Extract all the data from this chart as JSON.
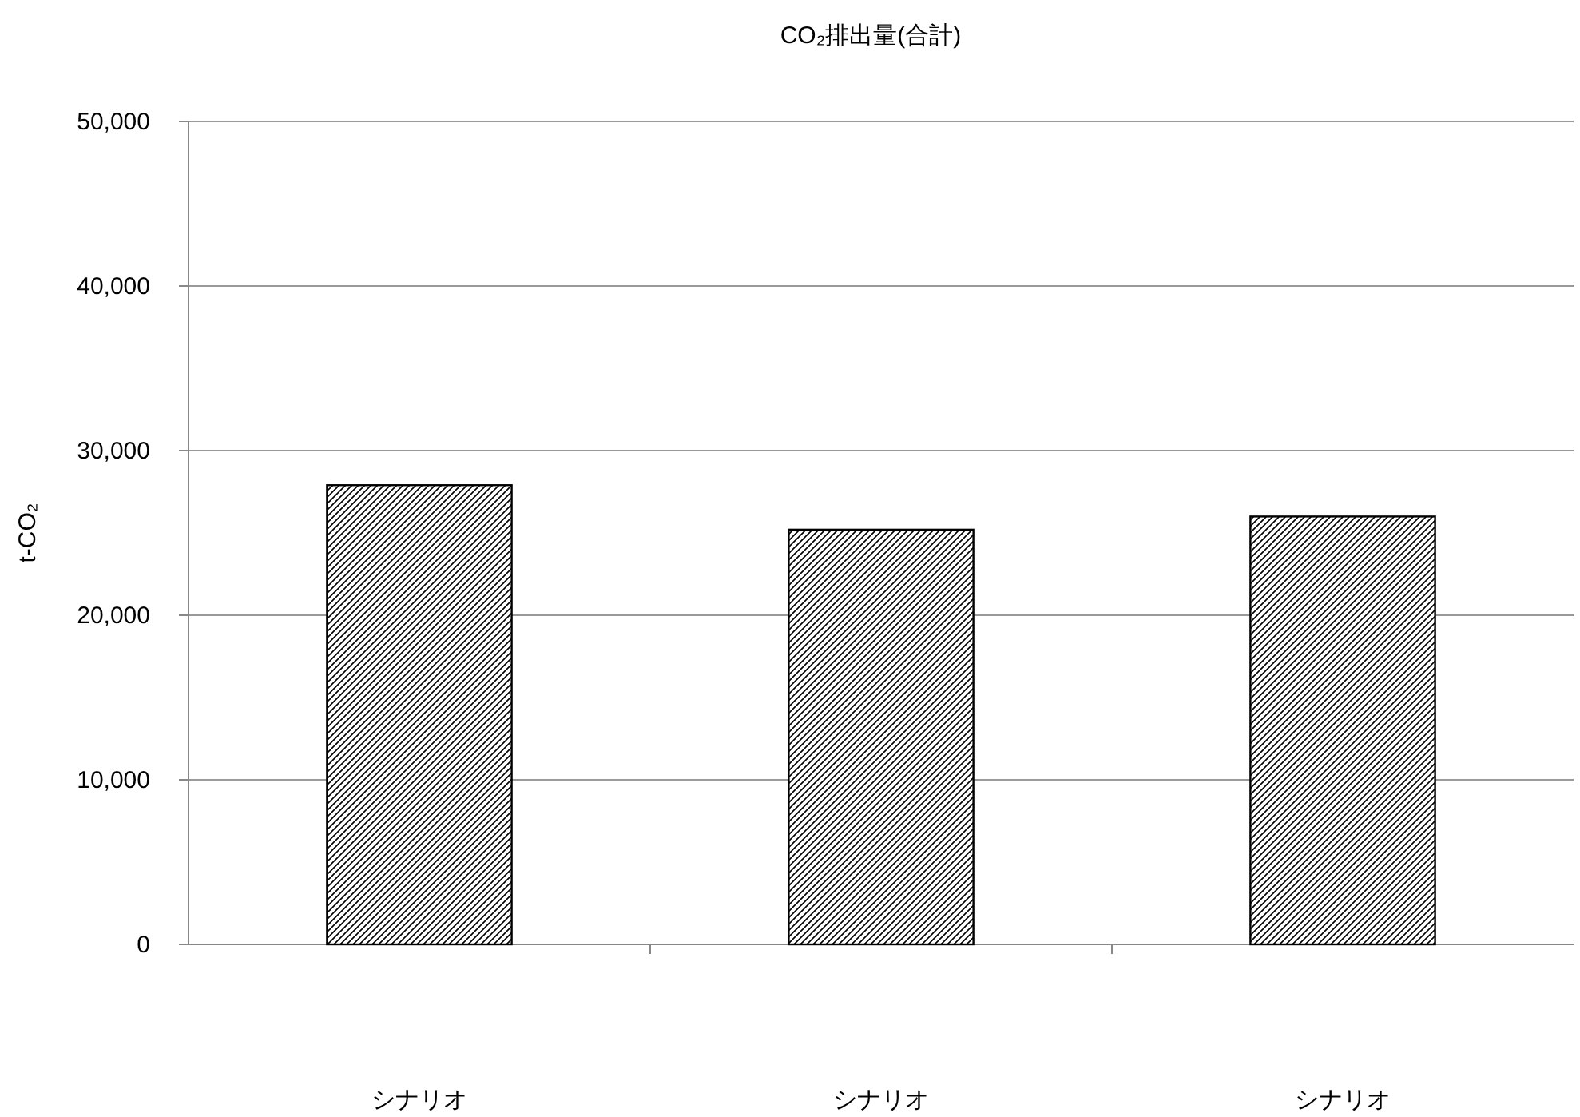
{
  "chart_data": {
    "type": "bar",
    "title": "CO₂排出量(合計)",
    "ylabel": "t-CO₂",
    "categories": [
      "シナリオ",
      "シナリオ",
      "シナリオ"
    ],
    "values": [
      27900,
      25200,
      26000
    ],
    "color": "#000000",
    "ylim": [
      0,
      50000
    ],
    "yticks": [
      {
        "value": 0,
        "label": "0"
      },
      {
        "value": 10000,
        "label": "10,000"
      },
      {
        "value": 20000,
        "label": "20,000"
      },
      {
        "value": 30000,
        "label": "30,000"
      },
      {
        "value": 40000,
        "label": "40,000"
      },
      {
        "value": 50000,
        "label": "50,000"
      }
    ],
    "grid": "y"
  }
}
